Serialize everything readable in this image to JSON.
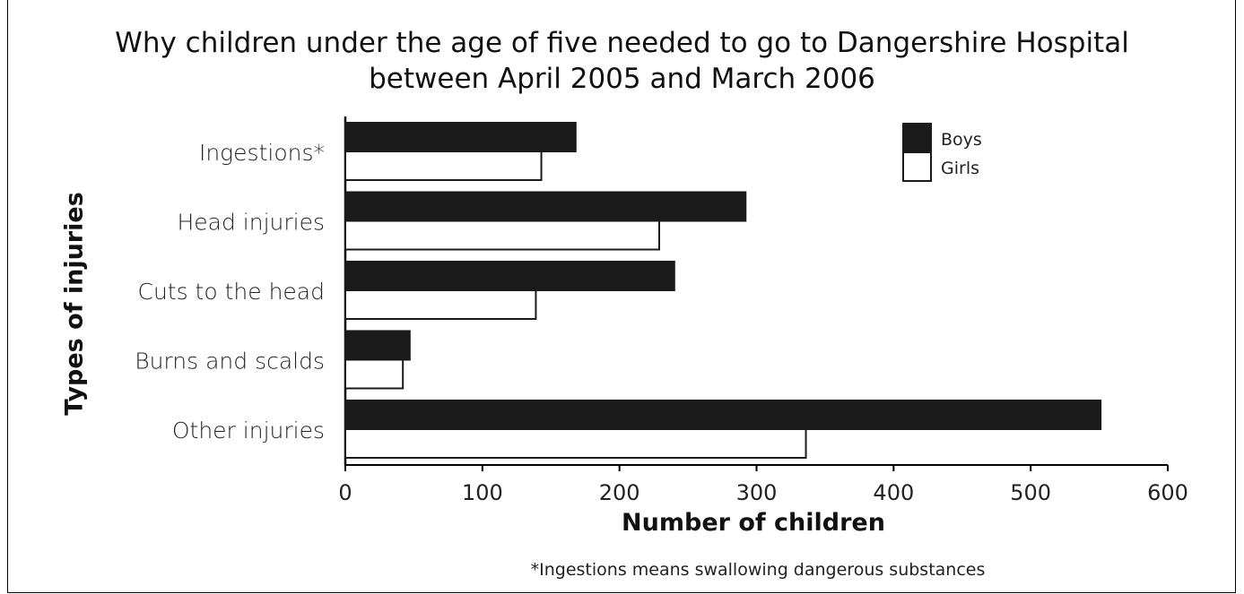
{
  "chart_data": {
    "type": "bar",
    "orientation": "horizontal",
    "title": "Why children under the age of five needed to go to Dangershire Hospital between April 2005 and March 2006",
    "title_lines": [
      "Why children under the age of five needed to go to Dangershire Hospital",
      "between April 2005 and March 2006"
    ],
    "xlabel": "Number of children",
    "ylabel": "Types of injuries",
    "categories": [
      "Ingestions*",
      "Head injuries",
      "Cuts to the head",
      "Burns and scalds",
      "Other injuries"
    ],
    "series": [
      {
        "name": "Boys",
        "values": [
          168,
          292,
          240,
          47,
          551
        ],
        "color": "#1a1a1a"
      },
      {
        "name": "Girls",
        "values": [
          143,
          229,
          139,
          42,
          336
        ],
        "color": "#ffffff"
      }
    ],
    "xlim": [
      0,
      600
    ],
    "xticks": [
      0,
      100,
      200,
      300,
      400,
      500,
      600
    ],
    "grid": false,
    "legend_position": "top-right",
    "footnote": "*Ingestions means swallowing dangerous substances"
  }
}
